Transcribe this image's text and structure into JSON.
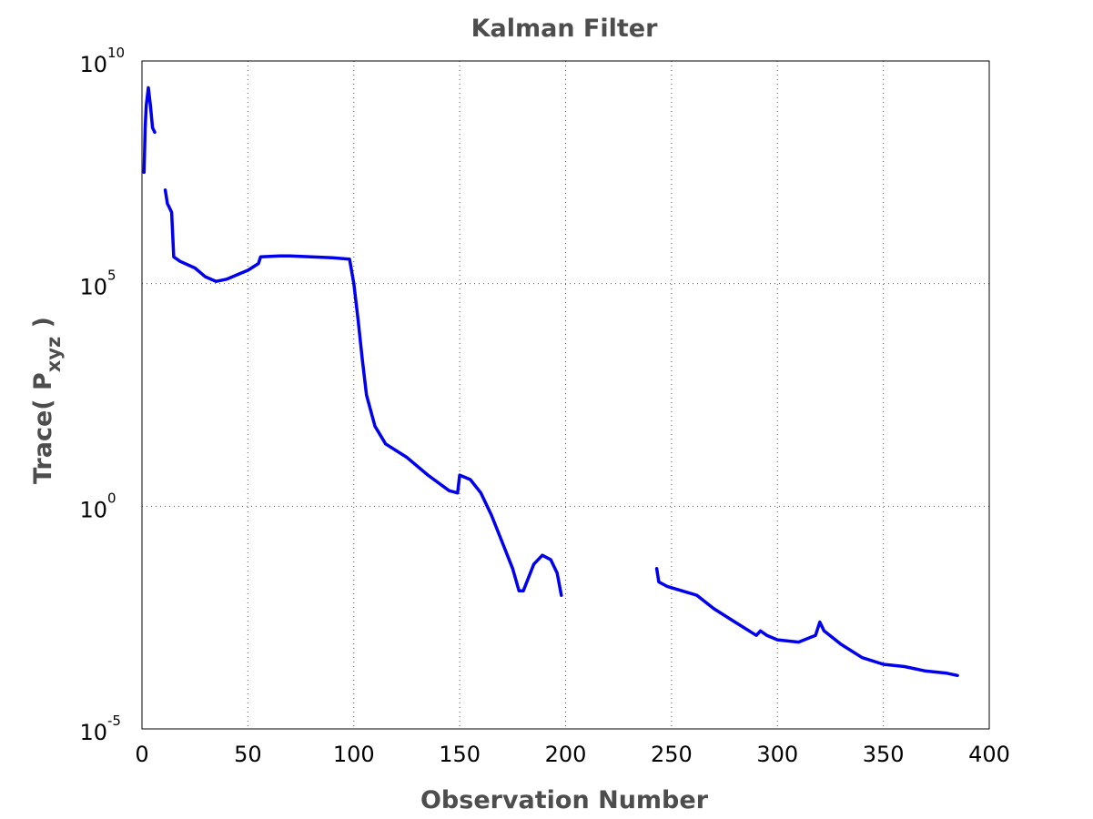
{
  "chart_data": {
    "type": "line",
    "title": "Kalman Filter",
    "xlabel": "Observation Number",
    "ylabel": "Trace( P",
    "ylabel_subscript": "xyz",
    "ylabel_suffix": " )",
    "xlim": [
      0,
      400
    ],
    "ylim": [
      1e-05,
      10000000000.0
    ],
    "yscale": "log",
    "grid": true,
    "xticks": [
      0,
      50,
      100,
      150,
      200,
      250,
      300,
      350,
      400
    ],
    "xtick_labels": [
      "0",
      "50",
      "100",
      "150",
      "200",
      "250",
      "300",
      "350",
      "400"
    ],
    "ytick_exponents": [
      -5,
      0,
      5,
      10
    ],
    "ytick_base": "10",
    "ytick_exp_labels": [
      "-5",
      "0",
      "5",
      "10"
    ],
    "color": "#0000ee",
    "segments": [
      [
        [
          1,
          7.5
        ],
        [
          1.5,
          8.5
        ],
        [
          2,
          9.0
        ],
        [
          3,
          9.4
        ],
        [
          4,
          9.0
        ],
        [
          5,
          8.5
        ],
        [
          6,
          8.4
        ]
      ],
      [
        [
          11,
          7.1
        ],
        [
          12,
          6.8
        ],
        [
          13,
          6.7
        ],
        [
          14,
          6.6
        ],
        [
          15,
          5.6
        ],
        [
          18,
          5.5
        ],
        [
          25,
          5.35
        ],
        [
          30,
          5.15
        ],
        [
          35,
          5.05
        ],
        [
          40,
          5.1
        ],
        [
          45,
          5.2
        ],
        [
          50,
          5.3
        ],
        [
          55,
          5.45
        ],
        [
          56,
          5.6
        ],
        [
          65,
          5.62
        ],
        [
          70,
          5.62
        ],
        [
          80,
          5.6
        ],
        [
          90,
          5.58
        ],
        [
          98,
          5.55
        ],
        [
          100,
          5.0
        ],
        [
          102,
          4.2
        ],
        [
          104,
          3.3
        ],
        [
          106,
          2.5
        ],
        [
          110,
          1.8
        ],
        [
          115,
          1.4
        ],
        [
          125,
          1.1
        ],
        [
          135,
          0.7
        ],
        [
          145,
          0.35
        ],
        [
          149,
          0.3
        ],
        [
          150,
          0.7
        ],
        [
          155,
          0.6
        ],
        [
          160,
          0.3
        ],
        [
          165,
          -0.2
        ],
        [
          170,
          -0.8
        ],
        [
          175,
          -1.4
        ],
        [
          178,
          -1.9
        ],
        [
          180,
          -1.9
        ],
        [
          185,
          -1.3
        ],
        [
          189,
          -1.1
        ],
        [
          193,
          -1.2
        ],
        [
          196,
          -1.5
        ],
        [
          198,
          -2.0
        ]
      ],
      [
        [
          243,
          -1.4
        ],
        [
          244,
          -1.7
        ],
        [
          248,
          -1.8
        ],
        [
          255,
          -1.9
        ],
        [
          262,
          -2.0
        ],
        [
          270,
          -2.3
        ],
        [
          280,
          -2.6
        ],
        [
          290,
          -2.9
        ],
        [
          292,
          -2.8
        ],
        [
          295,
          -2.9
        ],
        [
          300,
          -3.0
        ],
        [
          310,
          -3.05
        ],
        [
          318,
          -2.9
        ],
        [
          320,
          -2.6
        ],
        [
          322,
          -2.8
        ],
        [
          330,
          -3.1
        ],
        [
          340,
          -3.4
        ],
        [
          350,
          -3.55
        ],
        [
          360,
          -3.6
        ],
        [
          370,
          -3.7
        ],
        [
          380,
          -3.75
        ],
        [
          385,
          -3.8
        ]
      ]
    ]
  }
}
